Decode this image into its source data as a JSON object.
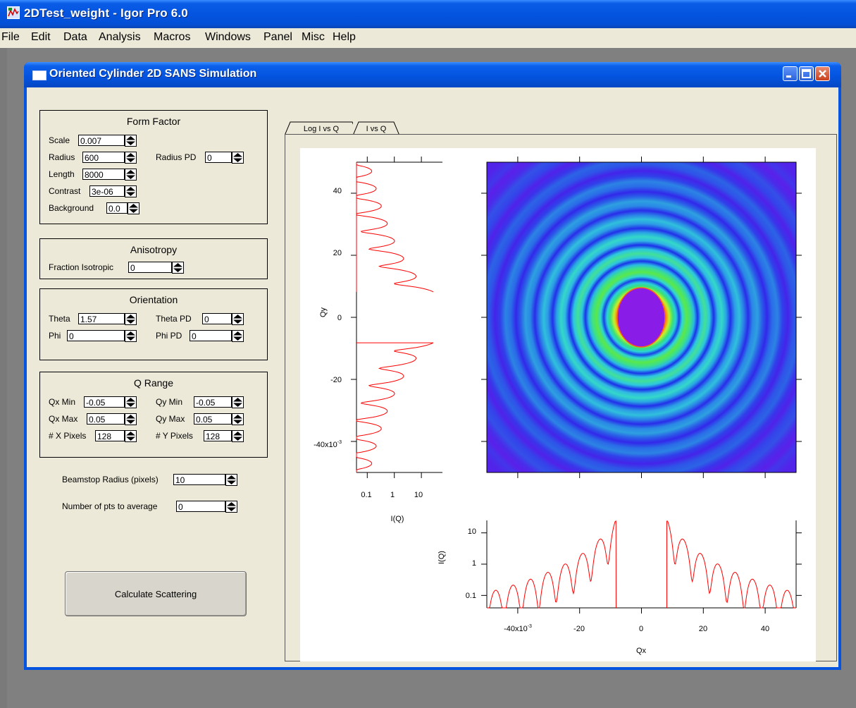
{
  "app": {
    "title": "2DTest_weight - Igor Pro 6.0"
  },
  "menu": [
    "File",
    "Edit",
    "Data",
    "Analysis",
    "Macros",
    "Windows",
    "Panel",
    "Misc",
    "Help"
  ],
  "panel": {
    "title": "Oriented Cylinder 2D SANS Simulation"
  },
  "form_factor": {
    "title": "Form Factor",
    "scale": {
      "label": "Scale",
      "value": "0.007"
    },
    "radius": {
      "label": "Radius",
      "value": "600"
    },
    "radius_pd": {
      "label": "Radius PD",
      "value": "0"
    },
    "length": {
      "label": "Length",
      "value": "8000"
    },
    "contrast": {
      "label": "Contrast",
      "value": "3e-06"
    },
    "background": {
      "label": "Background",
      "value": "0.0"
    }
  },
  "anisotropy": {
    "title": "Anisotropy",
    "fraction": {
      "label": "Fraction Isotropic",
      "value": "0"
    }
  },
  "orientation": {
    "title": "Orientation",
    "theta": {
      "label": "Theta",
      "value": "1.57"
    },
    "theta_pd": {
      "label": "Theta PD",
      "value": "0"
    },
    "phi": {
      "label": "Phi",
      "value": "0"
    },
    "phi_pd": {
      "label": "Phi PD",
      "value": "0"
    }
  },
  "q_range": {
    "title": "Q Range",
    "qx_min": {
      "label": "Qx Min",
      "value": "-0.05"
    },
    "qy_min": {
      "label": "Qy Min",
      "value": "-0.05"
    },
    "qx_max": {
      "label": "Qx Max",
      "value": "0.05"
    },
    "qy_max": {
      "label": "Qy Max",
      "value": "0.05"
    },
    "x_pixels": {
      "label": "# X Pixels",
      "value": "128"
    },
    "y_pixels": {
      "label": "# Y Pixels",
      "value": "128"
    }
  },
  "beamstop": {
    "label": "Beamstop Radius (pixels)",
    "value": "10"
  },
  "npts": {
    "label": "Number of pts to average",
    "value": "0"
  },
  "calc_button": "Calculate Scattering",
  "tabs": [
    {
      "label": "Log I vs Q",
      "active": true
    },
    {
      "label": "I vs Q",
      "active": false
    }
  ],
  "chart_data": [
    {
      "type": "heatmap",
      "title": "",
      "x_range": [
        -50,
        50
      ],
      "y_range": [
        -50,
        50
      ],
      "description_of_values": "radially symmetric ring pattern, bright core radius ~8, rings period ~5.5",
      "colors": [
        "#7a1ee6",
        "#2438ea",
        "#35c8e8",
        "#2fe07c",
        "#b8ee2a",
        "#ff9a1a",
        "#ff2a1a"
      ]
    },
    {
      "type": "line",
      "xlabel": "I(Q)",
      "ylabel": "Qy",
      "x_scale": "log",
      "x_range": [
        0.04,
        60
      ],
      "y_range": [
        -50,
        50
      ],
      "x_ticks": [
        "0.1",
        "1",
        "10"
      ],
      "y_ticks": [
        "-40x10-3",
        "-20",
        "0",
        "20",
        "40"
      ],
      "color": "#ff0000"
    },
    {
      "type": "line",
      "xlabel": "Qx",
      "ylabel": "I(Q)",
      "y_scale": "log",
      "x_range": [
        -50,
        50
      ],
      "y_range": [
        0.04,
        25
      ],
      "x_ticks": [
        "-40x10-3",
        "-20",
        "0",
        "20",
        "40"
      ],
      "y_ticks": [
        "0.1",
        "1",
        "10"
      ],
      "color": "#ff0000"
    }
  ]
}
